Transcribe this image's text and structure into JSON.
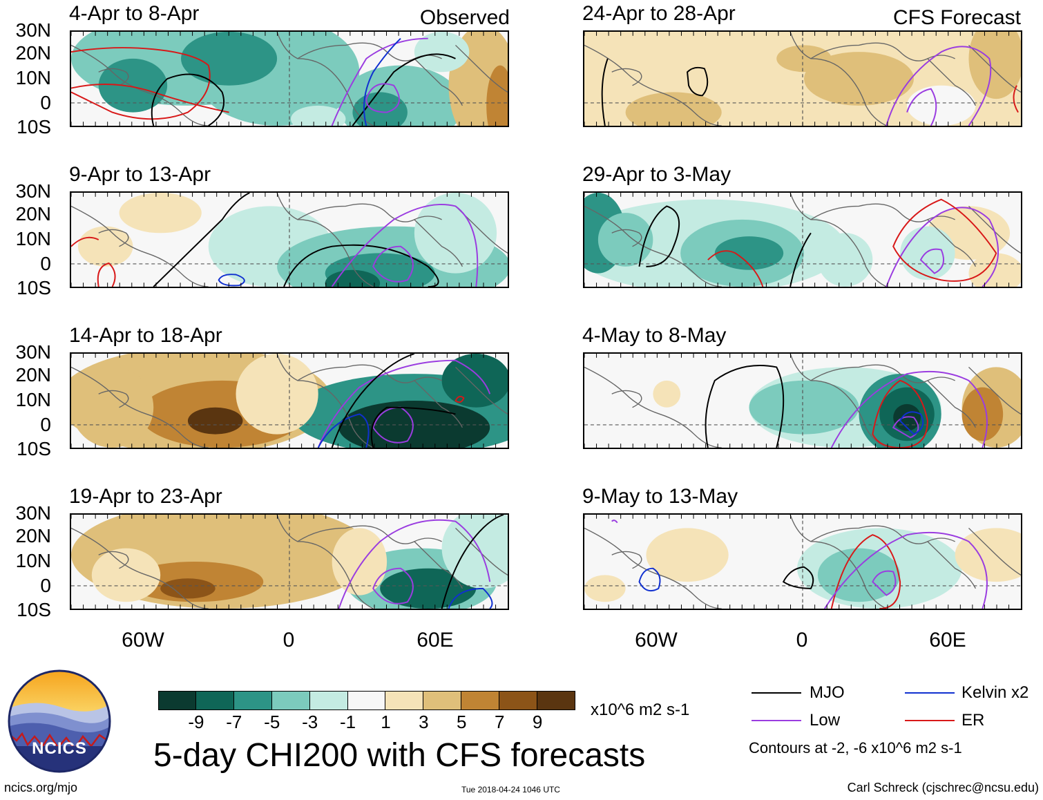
{
  "panels": {
    "left": [
      {
        "title": "4-Apr to 8-Apr",
        "tag": "Observed"
      },
      {
        "title": "9-Apr to 13-Apr",
        "tag": ""
      },
      {
        "title": "14-Apr to 18-Apr",
        "tag": ""
      },
      {
        "title": "19-Apr to 23-Apr",
        "tag": ""
      }
    ],
    "right": [
      {
        "title": "24-Apr to 28-Apr",
        "tag": "CFS Forecast"
      },
      {
        "title": "29-Apr to 3-May",
        "tag": ""
      },
      {
        "title": "4-May to 8-May",
        "tag": ""
      },
      {
        "title": "9-May to 13-May",
        "tag": ""
      }
    ]
  },
  "lat_labels": [
    "30N",
    "20N",
    "10N",
    "0",
    "10S"
  ],
  "lon_labels": [
    "60W",
    "0",
    "60E"
  ],
  "colorbar": {
    "colors": [
      "#0b3a30",
      "#0f6657",
      "#2d9486",
      "#7ccbbd",
      "#c4ebe2",
      "#f7f7f7",
      "#f5e3b8",
      "#dfbf7a",
      "#c08434",
      "#8c5418",
      "#5a3510"
    ],
    "labels": [
      "-9",
      "-7",
      "-5",
      "-3",
      "-1",
      "1",
      "3",
      "5",
      "7",
      "9"
    ],
    "units": "x10^6 m2 s-1"
  },
  "main_title": "5-day CHI200 with CFS forecasts",
  "legend": {
    "items": [
      {
        "label": "MJO",
        "color": "#000000"
      },
      {
        "label": "Kelvin x2",
        "color": "#1030d0"
      },
      {
        "label": "Low",
        "color": "#9a3ce0"
      },
      {
        "label": "ER",
        "color": "#d81818"
      }
    ],
    "contour_note": "Contours at -2, -6 x10^6 m2 s-1"
  },
  "logo": {
    "text": "NCICS"
  },
  "footer": {
    "left": "ncics.org/mjo",
    "center": "Tue 2018-04-24 1046 UTC",
    "right": "Carl Schreck (cjschrec@ncsu.edu)"
  }
}
